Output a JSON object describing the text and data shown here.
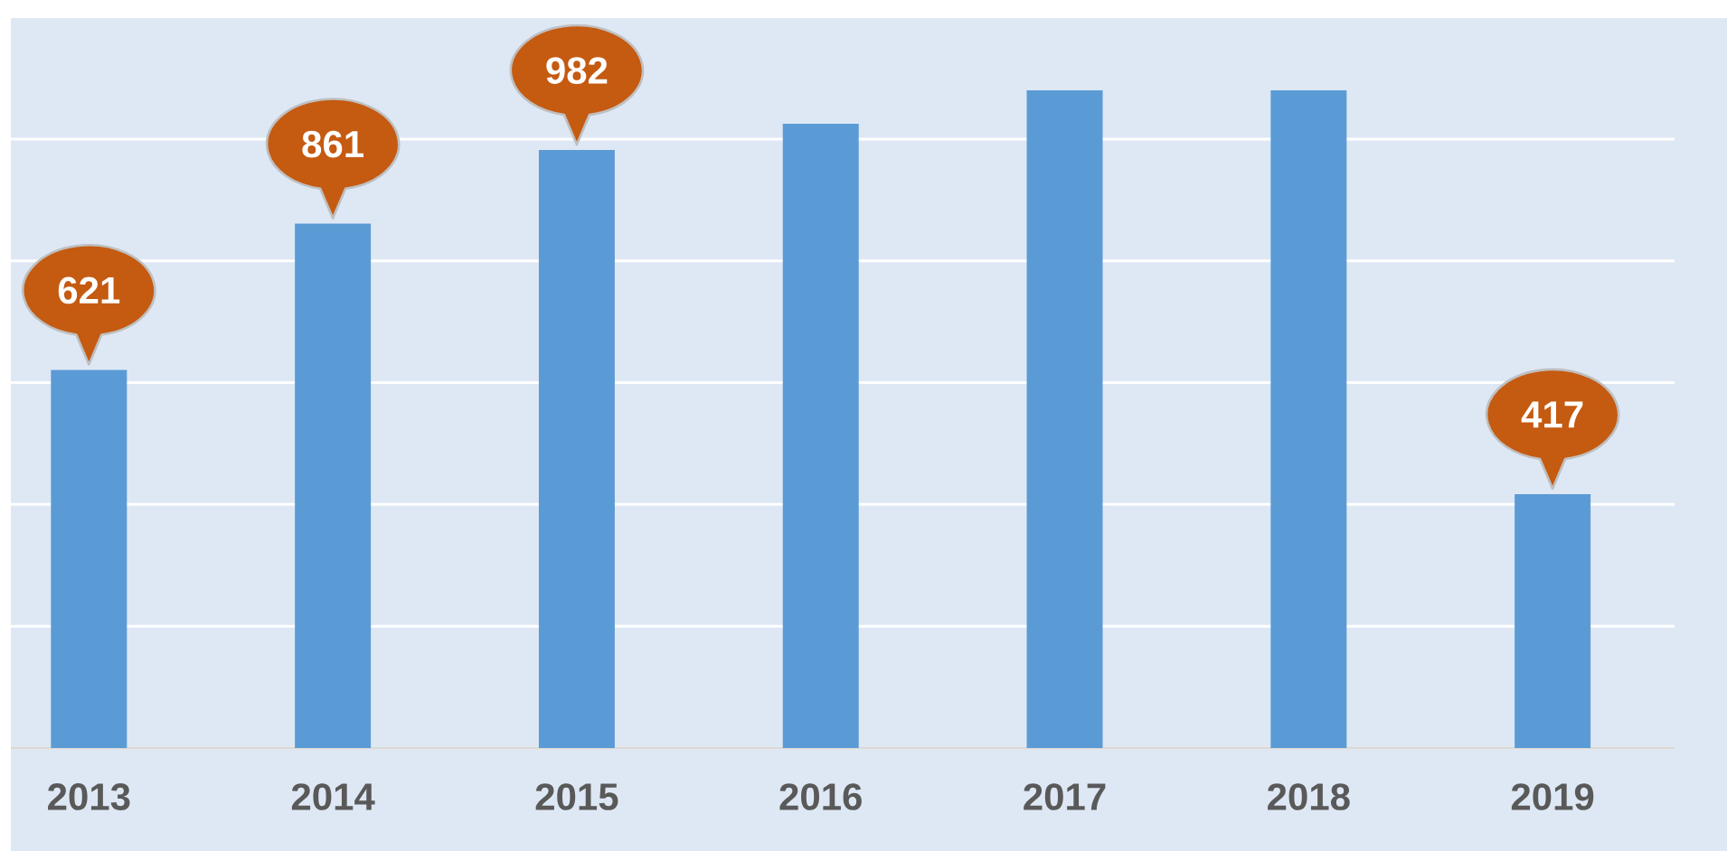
{
  "chart_data": {
    "type": "bar",
    "categories": [
      "2013",
      "2014",
      "2015",
      "2016",
      "2017",
      "2018",
      "2019"
    ],
    "values": [
      621,
      861,
      982,
      1025,
      1080,
      1080,
      417
    ],
    "value_labels": [
      "621",
      "861",
      "982",
      null,
      null,
      null,
      "417"
    ],
    "color": "#5b9bd5",
    "ylim": [
      0,
      1080
    ],
    "yticks": [
      {
        "value": 0,
        "label": null
      },
      {
        "value": 200,
        "label": null
      },
      {
        "value": 400,
        "label": null
      },
      {
        "value": 600,
        "label": null
      },
      {
        "value": 800,
        "label": null
      },
      {
        "value": 1000,
        "label": null
      }
    ],
    "grid": "y",
    "tick_labels": "x"
  }
}
